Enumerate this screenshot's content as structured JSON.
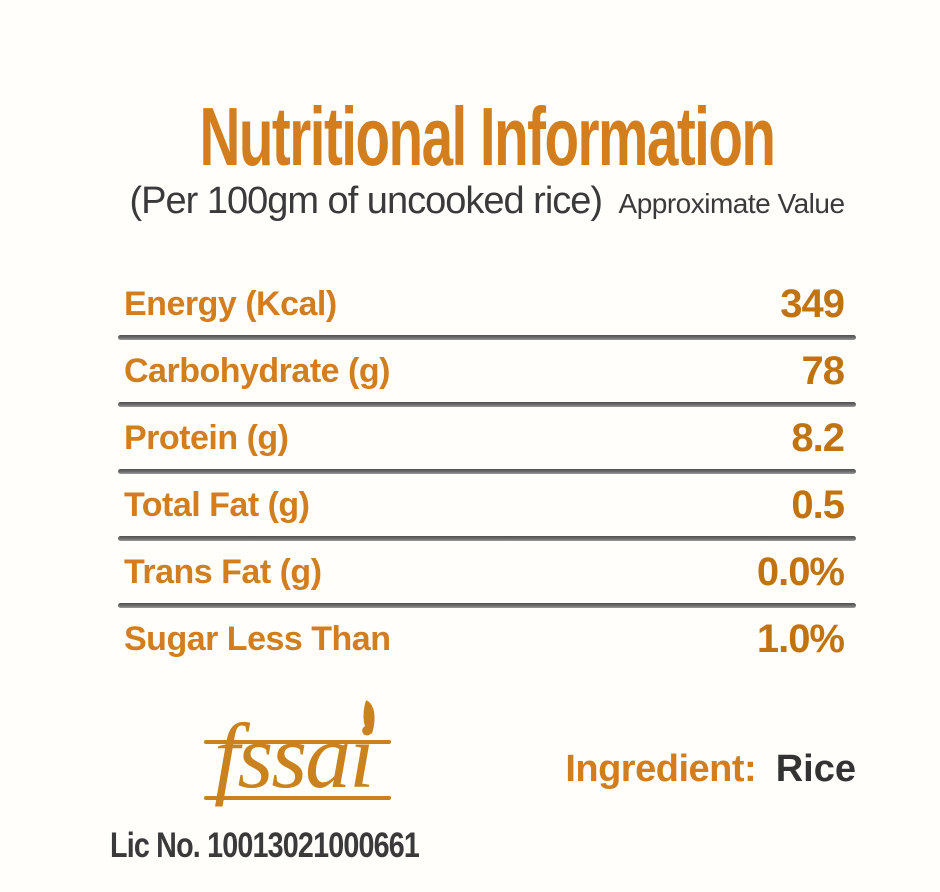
{
  "header": {
    "title": "Nutritional Information",
    "subtitle": "(Per 100gm of uncooked rice)",
    "subtitle_note": "Approximate Value"
  },
  "table": {
    "rows": [
      {
        "label": "Energy (Kcal)",
        "value": "349"
      },
      {
        "label": "Carbohydrate (g)",
        "value": "78"
      },
      {
        "label": "Protein (g)",
        "value": "8.2"
      },
      {
        "label": "Total Fat (g)",
        "value": "0.5"
      },
      {
        "label": "Trans Fat (g)",
        "value": "0.0%"
      },
      {
        "label": "Sugar Less Than",
        "value": "1.0%"
      }
    ]
  },
  "footer": {
    "fssai_logo_text": "fssai",
    "license_number": "Lic No. 10013021000661",
    "ingredient_label": "Ingredient:",
    "ingredient_value": "Rice"
  },
  "colors": {
    "accent_orange": "#d27e1e",
    "logo_orange": "#c9821d",
    "value_orange": "#c17311",
    "dark_text": "#3a3a3a"
  }
}
